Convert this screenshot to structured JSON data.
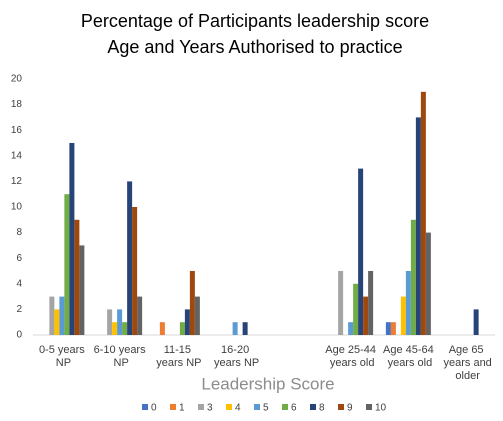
{
  "chart_data": {
    "type": "bar",
    "title": "Percentage of Participants leadership score",
    "subtitle": "Age and Years Authorised to practice",
    "x_label": "Leadership Score",
    "categories": [
      "0-5 years NP",
      "6-10 years NP",
      "11-15 years NP",
      "16-20 years NP",
      null,
      "Age 25-44 years old",
      "Age 45-64 years old",
      "Age 65 years and older"
    ],
    "series": [
      {
        "name": "0",
        "color": "#4472c4",
        "values": [
          0,
          0,
          0,
          0,
          null,
          0,
          1,
          0
        ]
      },
      {
        "name": "1",
        "color": "#ed7d31",
        "values": [
          0,
          0,
          1,
          0,
          null,
          0,
          1,
          0
        ]
      },
      {
        "name": "3",
        "color": "#a5a5a5",
        "values": [
          3,
          2,
          0,
          0,
          null,
          5,
          0,
          0
        ]
      },
      {
        "name": "4",
        "color": "#ffc000",
        "values": [
          2,
          1,
          0,
          0,
          null,
          0,
          3,
          0
        ]
      },
      {
        "name": "5",
        "color": "#5b9bd5",
        "values": [
          3,
          2,
          0,
          1,
          null,
          1,
          5,
          0
        ]
      },
      {
        "name": "6",
        "color": "#70ad47",
        "values": [
          11,
          1,
          1,
          0,
          null,
          4,
          9,
          0
        ]
      },
      {
        "name": "8",
        "color": "#264478",
        "values": [
          15,
          12,
          2,
          1,
          null,
          13,
          17,
          2
        ]
      },
      {
        "name": "9",
        "color": "#9e480e",
        "values": [
          9,
          10,
          5,
          0,
          null,
          3,
          19,
          0
        ]
      },
      {
        "name": "10",
        "color": "#636363",
        "values": [
          7,
          3,
          3,
          0,
          null,
          5,
          8,
          0
        ]
      }
    ],
    "ylim": [
      0,
      20
    ],
    "yticks": [
      0,
      2,
      4,
      6,
      8,
      10,
      12,
      14,
      16,
      18,
      20
    ],
    "grid": false,
    "legend": "bottom"
  }
}
